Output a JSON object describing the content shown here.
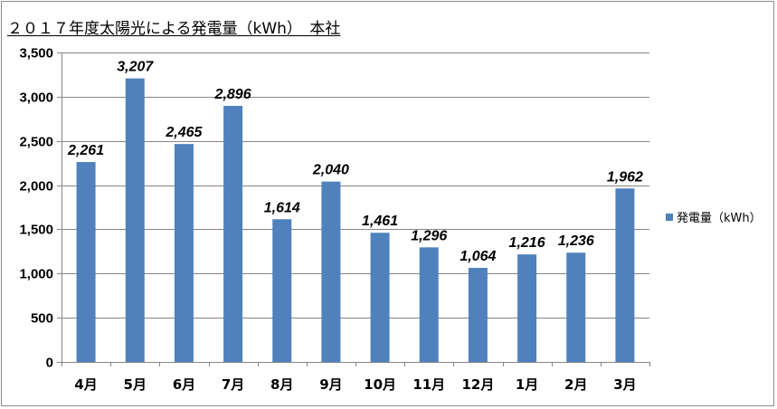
{
  "chart_data": {
    "type": "bar",
    "title": "２０１７年度太陽光による発電量（kWh）　本社",
    "categories": [
      "4月",
      "5月",
      "6月",
      "7月",
      "8月",
      "9月",
      "10月",
      "11月",
      "12月",
      "1月",
      "2月",
      "3月"
    ],
    "series": [
      {
        "name": "発電量（kWh）",
        "values": [
          2261,
          3207,
          2465,
          2896,
          1614,
          2040,
          1461,
          1296,
          1064,
          1216,
          1236,
          1962
        ],
        "labels": [
          "2,261",
          "3,207",
          "2,465",
          "2,896",
          "1,614",
          "2,040",
          "1,461",
          "1,296",
          "1,064",
          "1,216",
          "1,236",
          "1,962"
        ],
        "color": "#4f81bd"
      }
    ],
    "ylim": [
      0,
      3500
    ],
    "yticks": [
      0,
      500,
      1000,
      1500,
      2000,
      2500,
      3000,
      3500
    ],
    "ytick_labels": [
      "0",
      "500",
      "1,000",
      "1,500",
      "2,000",
      "2,500",
      "3,000",
      "3,500"
    ],
    "xlabel": "",
    "ylabel": "",
    "grid": true,
    "legend_position": "right",
    "gridline_color": "#868686",
    "axis_color": "#868686"
  }
}
